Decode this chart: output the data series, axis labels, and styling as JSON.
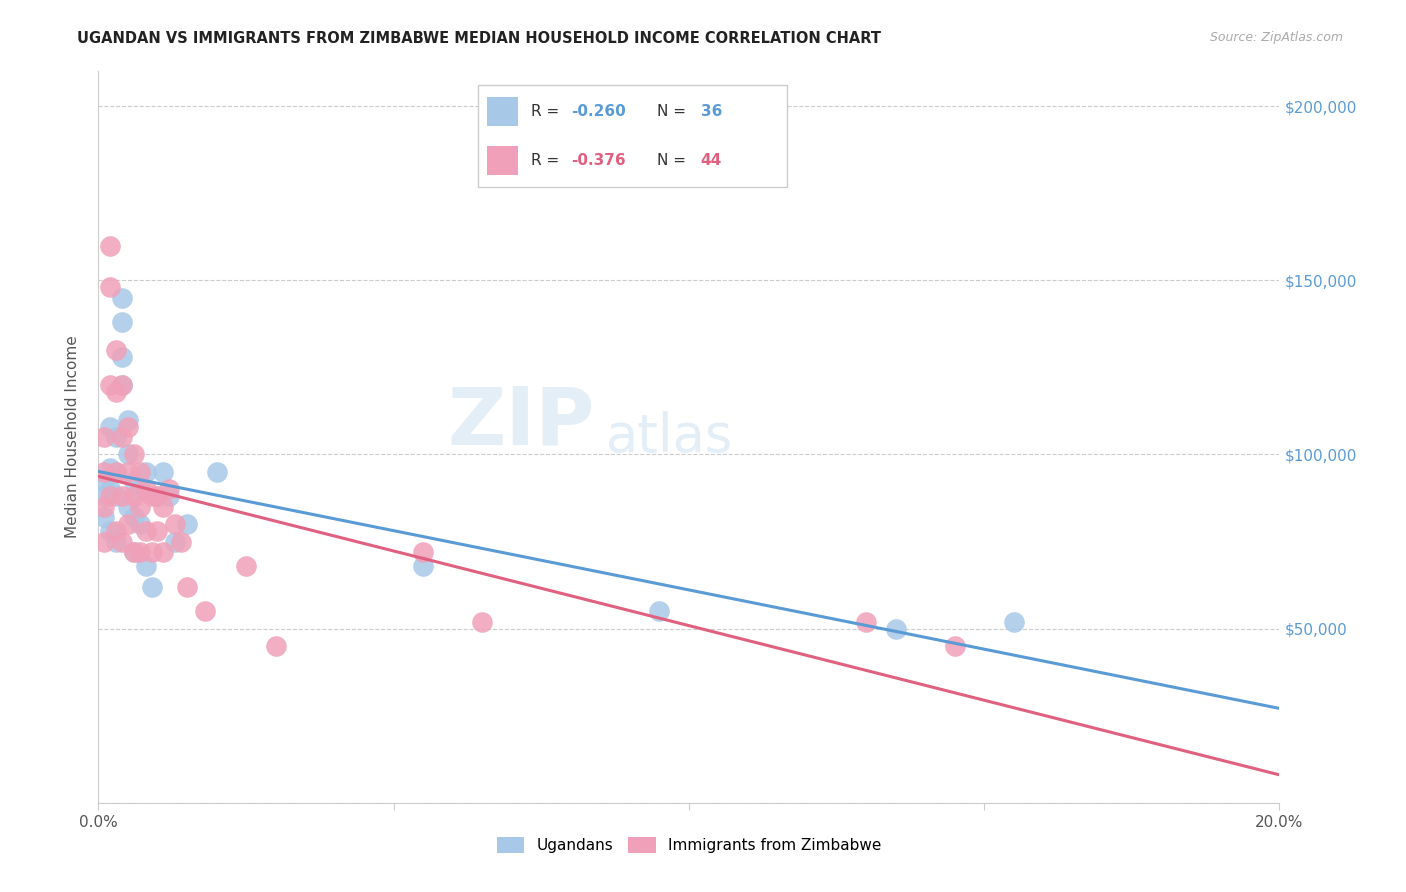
{
  "title": "UGANDAN VS IMMIGRANTS FROM ZIMBABWE MEDIAN HOUSEHOLD INCOME CORRELATION CHART",
  "source": "Source: ZipAtlas.com",
  "ylabel": "Median Household Income",
  "xlim": [
    0,
    0.2
  ],
  "ylim": [
    0,
    210000
  ],
  "yticks": [
    0,
    50000,
    100000,
    150000,
    200000
  ],
  "ytick_labels": [
    "",
    "$50,000",
    "$100,000",
    "$150,000",
    "$200,000"
  ],
  "xticks": [
    0.0,
    0.05,
    0.1,
    0.15,
    0.2
  ],
  "xtick_labels": [
    "0.0%",
    "",
    "",
    "",
    "20.0%"
  ],
  "r1": "-0.260",
  "n1": "36",
  "r2": "-0.376",
  "n2": "44",
  "watermark_big": "ZIP",
  "watermark_small": "atlas",
  "color_blue": "#a8c8e8",
  "color_pink": "#f0a0b8",
  "color_blue_line": "#5b9bd5",
  "color_pink_line": "#e06080",
  "color_blue_dark": "#4472c4",
  "ugandans_x": [
    0.001,
    0.001,
    0.001,
    0.002,
    0.002,
    0.002,
    0.002,
    0.003,
    0.003,
    0.003,
    0.003,
    0.004,
    0.004,
    0.004,
    0.004,
    0.005,
    0.005,
    0.005,
    0.006,
    0.006,
    0.006,
    0.007,
    0.007,
    0.008,
    0.008,
    0.009,
    0.01,
    0.011,
    0.012,
    0.013,
    0.015,
    0.02,
    0.055,
    0.095,
    0.135,
    0.155
  ],
  "ugandans_y": [
    92000,
    88000,
    82000,
    96000,
    108000,
    90000,
    78000,
    95000,
    105000,
    88000,
    75000,
    145000,
    138000,
    128000,
    120000,
    110000,
    100000,
    85000,
    92000,
    82000,
    72000,
    90000,
    80000,
    95000,
    68000,
    62000,
    88000,
    95000,
    88000,
    75000,
    80000,
    95000,
    68000,
    55000,
    50000,
    52000
  ],
  "zimbabwe_x": [
    0.001,
    0.001,
    0.001,
    0.001,
    0.002,
    0.002,
    0.002,
    0.002,
    0.003,
    0.003,
    0.003,
    0.003,
    0.004,
    0.004,
    0.004,
    0.004,
    0.005,
    0.005,
    0.005,
    0.006,
    0.006,
    0.006,
    0.007,
    0.007,
    0.007,
    0.008,
    0.008,
    0.009,
    0.009,
    0.01,
    0.01,
    0.011,
    0.011,
    0.012,
    0.013,
    0.014,
    0.015,
    0.018,
    0.025,
    0.03,
    0.055,
    0.065,
    0.13,
    0.145
  ],
  "zimbabwe_y": [
    105000,
    95000,
    85000,
    75000,
    160000,
    148000,
    120000,
    88000,
    130000,
    118000,
    95000,
    78000,
    120000,
    105000,
    88000,
    75000,
    108000,
    95000,
    80000,
    100000,
    88000,
    72000,
    95000,
    85000,
    72000,
    90000,
    78000,
    88000,
    72000,
    88000,
    78000,
    85000,
    72000,
    90000,
    80000,
    75000,
    62000,
    55000,
    68000,
    45000,
    72000,
    52000,
    52000,
    45000
  ]
}
